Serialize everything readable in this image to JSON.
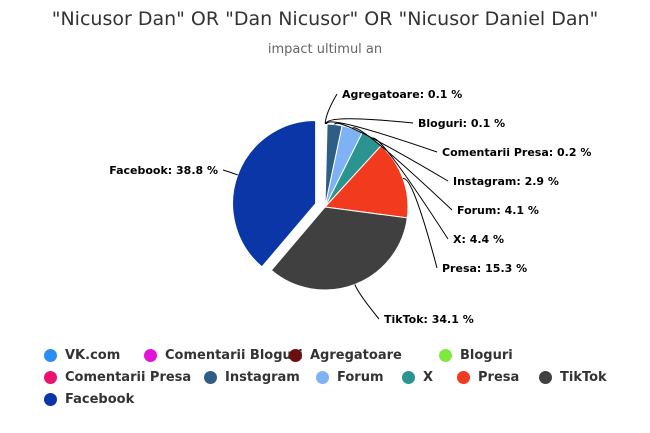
{
  "chart_data": {
    "type": "pie",
    "title": "\"Nicusor Dan\" OR \"Dan Nicusor\" OR \"Nicusor Daniel Dan\"",
    "subtitle": "impact ultimul an",
    "slices": [
      {
        "name": "VK.com",
        "value": 0.0,
        "color": "#2b8ef0",
        "show_label": false
      },
      {
        "name": "Comentarii Bloguri",
        "value": 0.0,
        "color": "#e014d8",
        "show_label": false
      },
      {
        "name": "Agregatoare",
        "value": 0.1,
        "label": "Agregatoare: 0.1 %",
        "color": "#6b0f12",
        "show_label": true
      },
      {
        "name": "Bloguri",
        "value": 0.1,
        "label": "Bloguri: 0.1 %",
        "color": "#7ee83f",
        "show_label": true
      },
      {
        "name": "Comentarii Presa",
        "value": 0.2,
        "label": "Comentarii Presa: 0.2 %",
        "color": "#e8136f",
        "show_label": true
      },
      {
        "name": "Instagram",
        "value": 2.9,
        "label": "Instagram: 2.9 %",
        "color": "#2e5d86",
        "show_label": true
      },
      {
        "name": "Forum",
        "value": 4.1,
        "label": "Forum: 4.1 %",
        "color": "#7fb1f5",
        "show_label": true
      },
      {
        "name": "X",
        "value": 4.4,
        "label": "X: 4.4 %",
        "color": "#2b9490",
        "show_label": true
      },
      {
        "name": "Presa",
        "value": 15.3,
        "label": "Presa: 15.3 %",
        "color": "#f23a1f",
        "show_label": true
      },
      {
        "name": "TikTok",
        "value": 34.1,
        "label": "TikTok: 34.1 %",
        "color": "#404040",
        "show_label": true
      },
      {
        "name": "Facebook",
        "value": 38.8,
        "label": "Facebook: 38.8 %",
        "color": "#0a36a8",
        "show_label": true
      }
    ],
    "sliced": "Facebook",
    "legend_position": "bottom",
    "legend": [
      "VK.com",
      "Comentarii Bloguri",
      "Agregatoare",
      "Bloguri",
      "Comentarii Presa",
      "Instagram",
      "Forum",
      "X",
      "Presa",
      "TikTok",
      "Facebook"
    ]
  }
}
